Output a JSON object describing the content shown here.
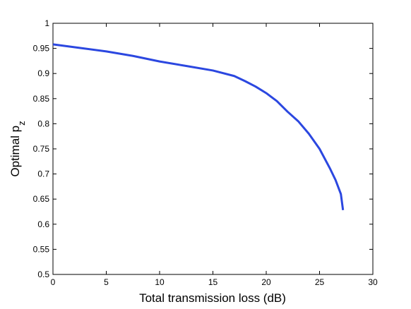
{
  "chart_data": {
    "type": "line",
    "xlabel": "Total transmission loss (dB)",
    "ylabel": {
      "text": "Optimal p",
      "subscript": "z"
    },
    "x": [
      0,
      2.5,
      5,
      7.5,
      10,
      12.5,
      15,
      17,
      18,
      19,
      20,
      21,
      22,
      23,
      24,
      25,
      26,
      26.5,
      27,
      27.2
    ],
    "series": [
      {
        "color": "#2b47e0",
        "values": [
          0.958,
          0.951,
          0.944,
          0.935,
          0.924,
          0.915,
          0.906,
          0.895,
          0.885,
          0.874,
          0.861,
          0.845,
          0.824,
          0.805,
          0.78,
          0.75,
          0.71,
          0.688,
          0.66,
          0.628
        ]
      }
    ],
    "xlim": [
      0,
      30
    ],
    "xticks": [
      0,
      5,
      10,
      15,
      20,
      25,
      30
    ],
    "ylim": [
      0.5,
      1
    ],
    "yticks": [
      0.5,
      0.55,
      0.6,
      0.65,
      0.7,
      0.75,
      0.8,
      0.85,
      0.9,
      0.95,
      1
    ],
    "grid": false
  }
}
